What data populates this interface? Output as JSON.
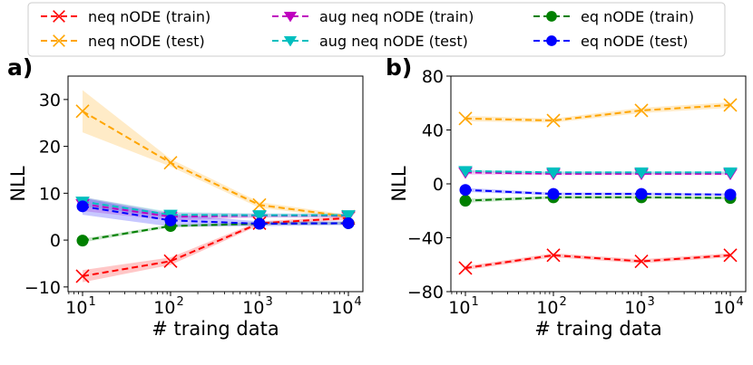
{
  "legend": {
    "entries": [
      {
        "label": "neq nODE (train)",
        "color": "#ff0000",
        "marker": "x"
      },
      {
        "label": "neq nODE (test)",
        "color": "#ffa500",
        "marker": "x"
      },
      {
        "label": "aug neq nODE (train)",
        "color": "#bf00bf",
        "marker": "v"
      },
      {
        "label": "aug neq nODE (test)",
        "color": "#00bfbf",
        "marker": "v"
      },
      {
        "label": "eq nODE (train)",
        "color": "#008000",
        "marker": "o"
      },
      {
        "label": "eq nODE (test)",
        "color": "#0000ff",
        "marker": "o"
      }
    ]
  },
  "chart_data": [
    {
      "panel_label": "a)",
      "type": "line",
      "xscale": "log",
      "xlabel": "# traing data",
      "ylabel": "NLL",
      "x": [
        10,
        100,
        1000,
        10000
      ],
      "xtick_labels": [
        "10",
        "10",
        "10",
        "10"
      ],
      "xtick_exponents": [
        "1",
        "2",
        "3",
        "4"
      ],
      "ylim": [
        -11,
        35
      ],
      "yticks": [
        -10,
        0,
        10,
        20,
        30
      ],
      "ytick_labels": [
        "−10",
        "0",
        "10",
        "20",
        "30"
      ],
      "series": [
        {
          "name": "neq nODE (train)",
          "values": [
            -7.7,
            -4.5,
            3.6,
            4.7
          ],
          "band": [
            1.3,
            0.8,
            0.4,
            0.4
          ]
        },
        {
          "name": "neq nODE (test)",
          "values": [
            27.5,
            16.5,
            7.5,
            5.0
          ],
          "band": [
            4.5,
            0.8,
            0.6,
            0.4
          ]
        },
        {
          "name": "aug neq nODE (train)",
          "values": [
            7.7,
            5.0,
            5.2,
            5.2
          ],
          "band": [
            1.5,
            0.8,
            0.4,
            0.4
          ]
        },
        {
          "name": "aug neq nODE (test)",
          "values": [
            8.2,
            5.4,
            5.3,
            5.3
          ],
          "band": [
            1.0,
            0.6,
            0.4,
            0.4
          ]
        },
        {
          "name": "eq nODE (train)",
          "values": [
            -0.1,
            3.0,
            3.5,
            3.6
          ],
          "band": [
            0.4,
            0.3,
            0.3,
            0.3
          ]
        },
        {
          "name": "eq nODE (test)",
          "values": [
            7.2,
            4.2,
            3.5,
            3.6
          ],
          "band": [
            1.8,
            1.3,
            0.5,
            0.4
          ]
        }
      ]
    },
    {
      "panel_label": "b)",
      "type": "line",
      "xscale": "log",
      "xlabel": "# traing data",
      "ylabel": "NLL",
      "x": [
        10,
        100,
        1000,
        10000
      ],
      "xtick_labels": [
        "10",
        "10",
        "10",
        "10"
      ],
      "xtick_exponents": [
        "1",
        "2",
        "3",
        "4"
      ],
      "ylim": [
        -80,
        80
      ],
      "yticks": [
        -80,
        -40,
        0,
        40,
        80
      ],
      "ytick_labels": [
        "−80",
        "−40",
        "0",
        "40",
        "80"
      ],
      "series": [
        {
          "name": "neq nODE (train)",
          "values": [
            -62.5,
            -53.0,
            -57.5,
            -53.0
          ],
          "band": [
            1.5,
            1.5,
            1.5,
            1.5
          ]
        },
        {
          "name": "neq nODE (test)",
          "values": [
            48.5,
            47.0,
            54.5,
            58.5
          ],
          "band": [
            2.0,
            1.5,
            2.0,
            2.0
          ]
        },
        {
          "name": "aug neq nODE (train)",
          "values": [
            8.5,
            7.5,
            7.5,
            7.5
          ],
          "band": [
            1.5,
            1.0,
            1.0,
            1.0
          ]
        },
        {
          "name": "aug neq nODE (test)",
          "values": [
            9.5,
            8.5,
            8.5,
            8.5
          ],
          "band": [
            1.0,
            1.0,
            1.0,
            1.0
          ]
        },
        {
          "name": "eq nODE (train)",
          "values": [
            -12.5,
            -10.0,
            -10.0,
            -10.5
          ],
          "band": [
            1.5,
            1.0,
            1.0,
            1.0
          ]
        },
        {
          "name": "eq nODE (test)",
          "values": [
            -4.5,
            -7.5,
            -7.5,
            -8.0
          ],
          "band": [
            1.5,
            1.0,
            1.0,
            1.0
          ]
        }
      ]
    }
  ]
}
